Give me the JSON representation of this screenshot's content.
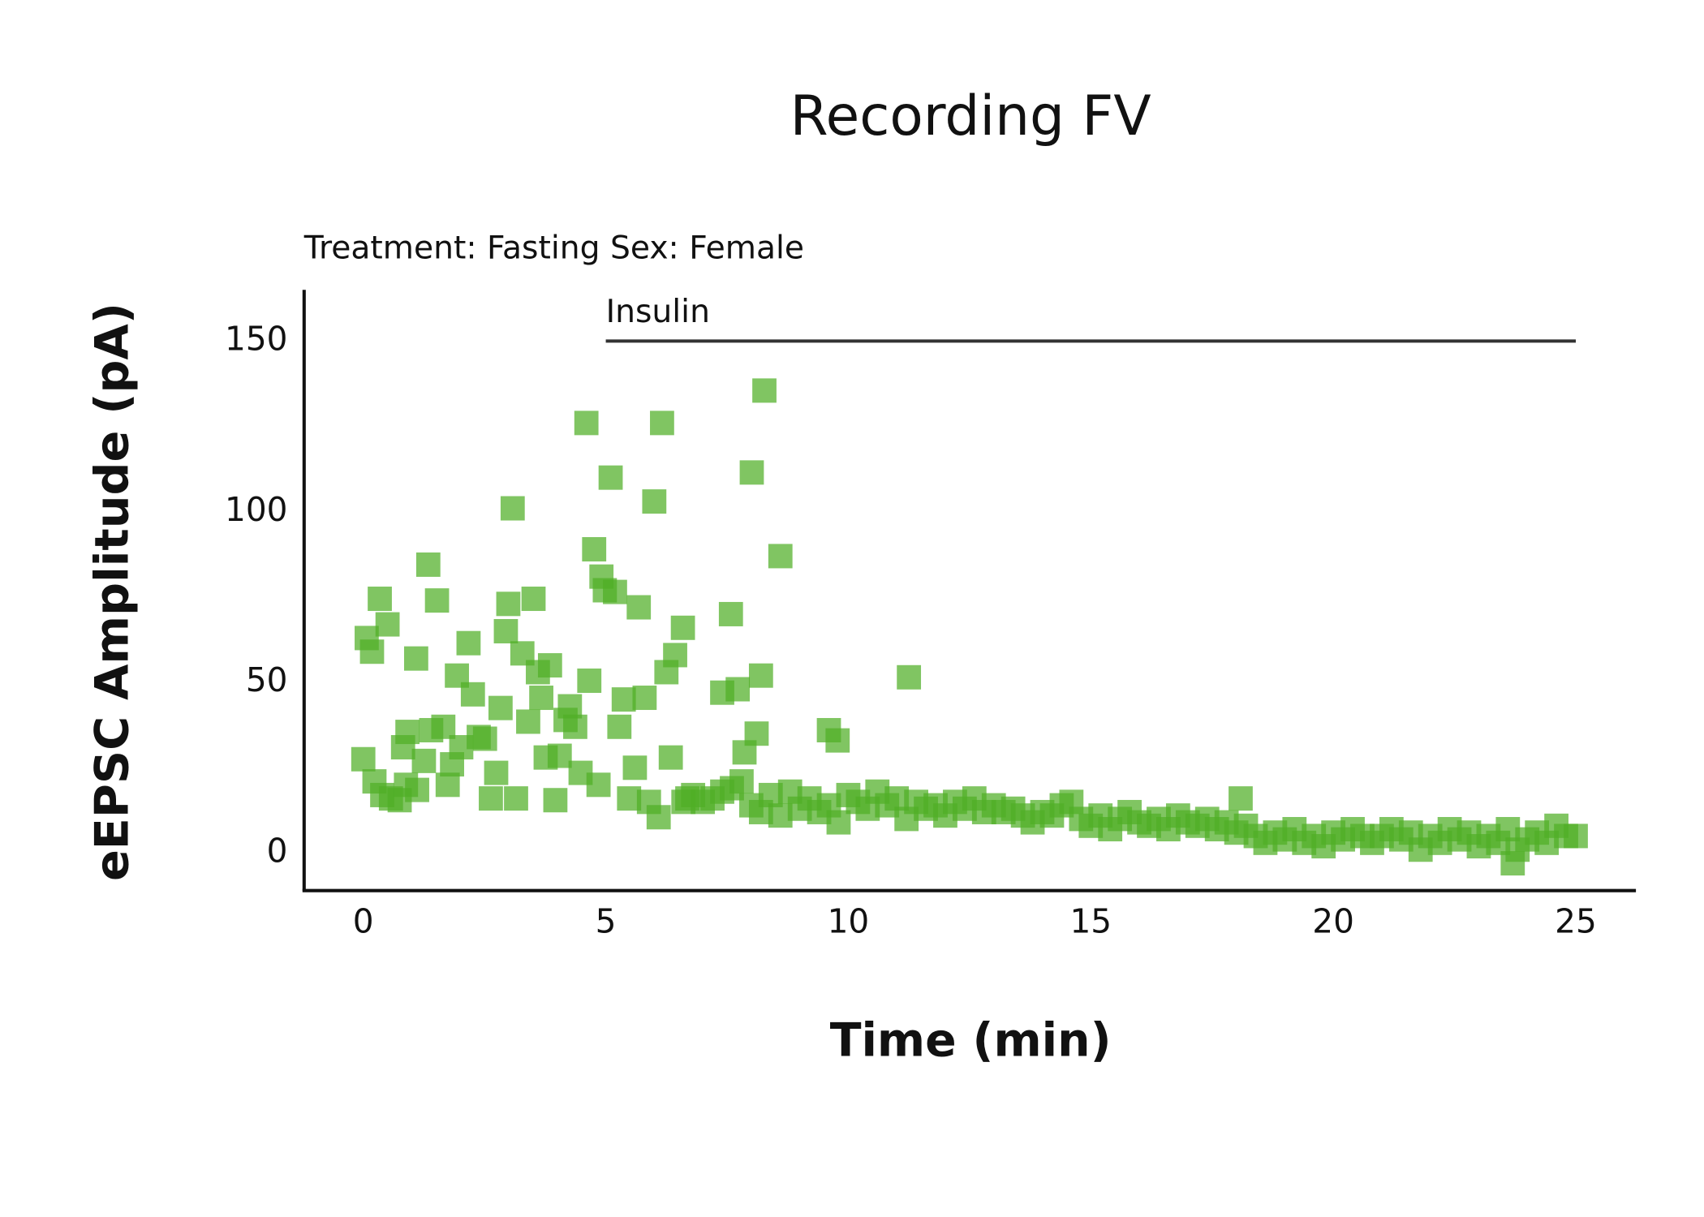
{
  "chart_data": {
    "type": "scatter",
    "title": "Recording FV",
    "subtitle": "Treatment: Fasting  Sex: Female",
    "xlabel": "Time (min)",
    "ylabel": "eEPSC Amplitude (pA)",
    "marker": "square",
    "color": "#4fae26",
    "xlim": [
      -1.22,
      26.24
    ],
    "ylim": [
      -11,
      165
    ],
    "xticks": [
      0,
      5,
      10,
      15,
      20,
      25
    ],
    "yticks": [
      0,
      50,
      100,
      150
    ],
    "grid": false,
    "annotations": [
      {
        "text": "Insulin",
        "x": [
          5,
          25
        ],
        "y": 150
      }
    ],
    "x": [
      0.0,
      0.07,
      0.18,
      0.23,
      0.34,
      0.39,
      0.5,
      0.57,
      0.75,
      0.82,
      0.88,
      0.91,
      1.09,
      1.11,
      1.25,
      1.34,
      1.4,
      1.52,
      1.65,
      1.74,
      1.83,
      1.93,
      2.02,
      2.17,
      2.26,
      2.38,
      2.51,
      2.63,
      2.74,
      2.83,
      2.94,
      2.99,
      3.08,
      3.15,
      3.28,
      3.4,
      3.51,
      3.6,
      3.67,
      3.76,
      3.85,
      3.96,
      4.05,
      4.17,
      4.26,
      4.37,
      4.48,
      4.6,
      4.66,
      4.76,
      4.85,
      4.91,
      4.98,
      5.1,
      5.19,
      5.28,
      5.37,
      5.48,
      5.6,
      5.68,
      5.8,
      5.89,
      6.0,
      6.09,
      6.16,
      6.25,
      6.34,
      6.43,
      6.59,
      6.6,
      6.8,
      7,
      7.2,
      7.4,
      7.6,
      7.8,
      8,
      8.2,
      8.4,
      8.6,
      8.8,
      9,
      9.2,
      9.4,
      9.6,
      9.8,
      10,
      10.2,
      10.4,
      10.6,
      10.8,
      11,
      11.2,
      11.4,
      11.6,
      11.8,
      12,
      12.2,
      12.4,
      12.6,
      12.8,
      13,
      13.2,
      13.4,
      13.6,
      13.8,
      14,
      14.2,
      14.4,
      14.6,
      14.8,
      15,
      15.2,
      15.4,
      15.6,
      15.8,
      16,
      16.2,
      16.4,
      16.6,
      16.8,
      17,
      17.2,
      17.4,
      17.6,
      17.8,
      18,
      18.2,
      18.4,
      18.6,
      18.8,
      19,
      19.2,
      19.4,
      19.6,
      19.8,
      20,
      20.2,
      20.4,
      20.6,
      20.8,
      21,
      21.2,
      21.4,
      21.6,
      21.8,
      22,
      22.2,
      22.4,
      22.6,
      22.8,
      23,
      23.2,
      23.4,
      23.6,
      23.8,
      24,
      24.2,
      24.4,
      24.6,
      24.8,
      25,
      6.68,
      7.4,
      7.58,
      7.72,
      7.86,
      8.01,
      8.11,
      8.2,
      8.27,
      8.6,
      9.6,
      9.78,
      11.25,
      18.09,
      23.7
    ],
    "values": [
      27.5,
      63,
      59,
      21,
      74.5,
      17,
      67,
      16,
      15.5,
      31,
      20,
      35.5,
      57,
      18.5,
      27,
      84.5,
      36,
      74,
      37,
      20,
      26,
      52,
      31,
      61.5,
      46.5,
      34,
      33.5,
      16,
      23.5,
      42.5,
      65,
      73,
      101,
      16,
      58.5,
      38.5,
      74.5,
      53,
      45.5,
      28,
      55,
      15.5,
      28.5,
      39,
      43,
      37,
      23.5,
      126,
      50.5,
      89,
      20,
      81,
      77,
      110,
      76.5,
      37,
      45,
      16,
      25,
      72,
      45.5,
      15,
      103,
      10.5,
      126,
      53,
      28,
      58,
      66,
      15,
      17,
      15,
      16,
      18,
      19,
      21,
      14,
      12,
      17,
      11,
      18,
      13,
      16,
      12,
      14,
      9,
      17,
      15,
      13,
      18,
      14,
      16,
      10,
      15,
      13,
      14,
      11,
      15,
      13,
      16,
      12,
      14,
      12,
      13,
      11,
      9,
      12,
      11,
      14,
      15,
      10,
      8,
      11,
      7,
      10,
      12,
      9,
      8,
      10,
      7,
      11,
      9,
      8,
      10,
      7,
      9,
      6,
      8,
      5,
      3,
      6,
      4,
      7,
      3,
      5,
      2,
      6,
      4,
      7,
      5,
      3,
      5,
      7,
      4,
      6,
      1,
      5,
      3,
      7,
      4,
      6,
      2,
      5,
      3,
      7,
      1,
      4,
      6,
      3,
      8,
      5,
      5,
      16,
      47,
      70,
      48,
      29.5,
      111.5,
      35,
      52,
      135.5,
      87,
      36,
      33,
      51.5,
      16,
      -3
    ]
  }
}
